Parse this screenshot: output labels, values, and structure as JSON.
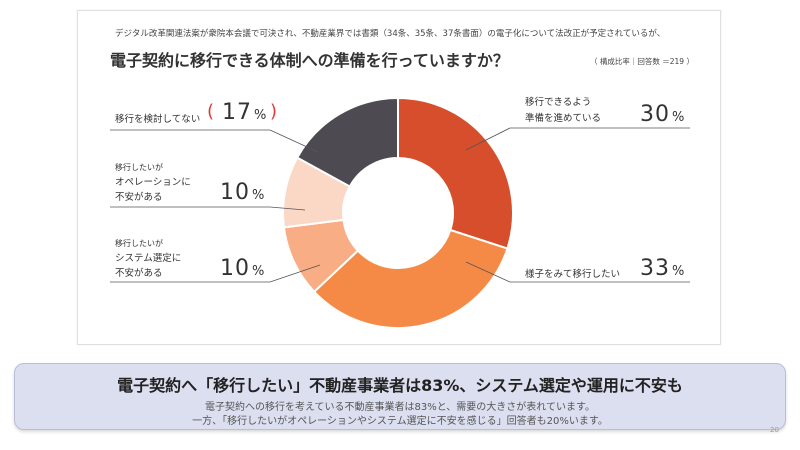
{
  "subtitle": "デジタル改革関連法案が衆院本会議で可決され、不動産業界では書類（34条、35条、37条書面）の電子化について法改正が予定されているが、",
  "question": "電子契約に移行できる体制への準備を行っていますか？",
  "meta": "（ 構成比率｜回答数 ＝219 ）",
  "chart_data": {
    "type": "pie",
    "donut": true,
    "title": "電子契約に移行できる体制への準備を行っていますか？",
    "categories": [
      "移行できるよう準備を進めている",
      "様子をみて移行したい",
      "移行したいがシステム選定に不安がある",
      "移行したいがオペレーションに不安がある",
      "移行を検討してない"
    ],
    "values": [
      30,
      33,
      10,
      10,
      17
    ],
    "unit": "%",
    "colors": [
      "#d64e2b",
      "#f58a47",
      "#f9ad84",
      "#fbd8c6",
      "#4d4a52"
    ]
  },
  "labels": {
    "s1_line1": "移行できるよう",
    "s1_line2": "準備を進めている",
    "s1_pct": "30",
    "s2": "様子をみて移行したい",
    "s2_pct": "33",
    "s3_line1": "移行したいが",
    "s3_line2": "システム選定に",
    "s3_line3": "不安がある",
    "s3_pct": "10",
    "s4_line1": "移行したいが",
    "s4_line2": "オペレーションに",
    "s4_line3": "不安がある",
    "s4_pct": "10",
    "s5": "移行を検討してない",
    "s5_pct": "17",
    "unit": "%"
  },
  "summary": {
    "title": "電子契約へ「移行したい」不動産事業者は83%、システム選定や運用に不安も",
    "line1": "電子契約への移行を考えている不動産事業者は83%と、需要の大きさが表れています。",
    "line2": "一方、「移行したいがオペレーションやシステム選定に不安を感じる」回答者も20%います。"
  },
  "page_number": "20"
}
